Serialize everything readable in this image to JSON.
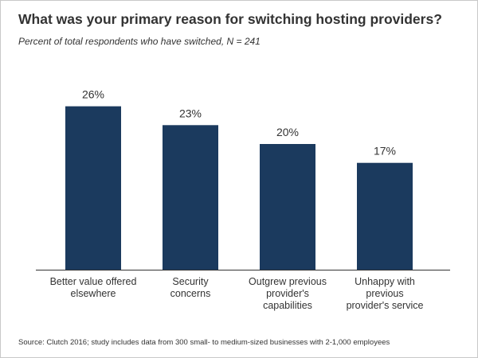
{
  "title": "What was your primary reason for switching hosting providers?",
  "subtitle": "Percent of total respondents who have switched, N = 241",
  "source": "Source: Clutch 2016; study includes data from 300 small- to medium-sized businesses with 2-1,000 employees",
  "colors": {
    "bar": "#1b3a5e",
    "axis": "#333333",
    "text": "#333333"
  },
  "chart_data": {
    "type": "bar",
    "categories": [
      [
        "Better value offered",
        "elsewhere"
      ],
      [
        "Security",
        "concerns"
      ],
      [
        "Outgrew previous",
        "provider's",
        "capabilities"
      ],
      [
        "Unhappy with",
        "previous",
        "provider's service"
      ]
    ],
    "values": [
      26,
      23,
      20,
      17
    ],
    "value_labels": [
      "26%",
      "23%",
      "20%",
      "17%"
    ],
    "ylim": [
      0,
      30
    ],
    "grid": false,
    "legend": "none"
  }
}
